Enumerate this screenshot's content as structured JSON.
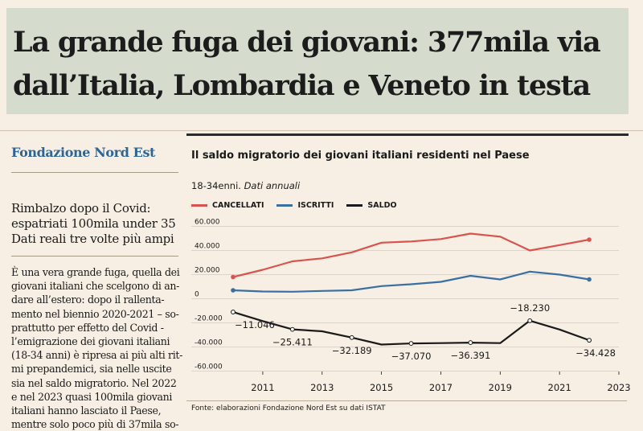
{
  "headline": {
    "line1": "La grande fuga dei giovani: 377mila via",
    "line2": "dall’Italia, Lombardia e Veneto in testa"
  },
  "brand": "Fondazione Nord Est",
  "deck": {
    "line1": "Rimbalzo dopo il Covid:",
    "line2": "espatriati 100mila under 35",
    "line3": "Dati reali tre volte più ampi"
  },
  "body_lines": [
    "È una vera grande fuga, quella dei",
    "giovani italiani che scelgono di an-",
    "dare all’estero: dopo il rallenta-",
    "mento nel biennio 2020-2021 – so-",
    "prattutto per effetto del Covid -",
    "l’emigrazione dei giovani italiani",
    "(18-34 anni) è ripresa ai più alti rit-",
    "mi prepandemici, sia nelle uscite",
    "sia nel saldo migratorio. Nel 2022",
    "e nel 2023 quasi 100mila giovani",
    "italiani hanno lasciato il Paese,",
    "mentre solo poco più di 37mila so-"
  ],
  "chart_header": {
    "title": "Il saldo migratorio dei giovani italiani residenti nel Paese",
    "subtitle_plain": "18-34enni.",
    "subtitle_italic": "Dati annuali",
    "source": "Fonte: elaborazioni Fondazione Nord Est su dati ISTAT"
  },
  "colors": {
    "cancellati": "#d9534f",
    "iscritti": "#3a6fa3",
    "saldo": "#1a1a1a"
  },
  "chart_data": {
    "type": "line",
    "title": "Il saldo migratorio dei giovani italiani residenti nel Paese",
    "subtitle": "18-34enni. Dati annuali",
    "x": [
      2010,
      2011,
      2012,
      2013,
      2014,
      2015,
      2016,
      2017,
      2018,
      2019,
      2020,
      2021,
      2022,
      2023
    ],
    "x_tick_labels": [
      "2011",
      "2013",
      "2015",
      "2017",
      "2019",
      "2021",
      "2023"
    ],
    "x_ticks": [
      2011,
      2013,
      2015,
      2017,
      2019,
      2021,
      2023
    ],
    "y_tick_labels": [
      "60.000",
      "40.000",
      "20.000",
      "0",
      "-20.000",
      "-40.000",
      "-60.000"
    ],
    "y_ticks": [
      60000,
      40000,
      20000,
      0,
      -20000,
      -40000,
      -60000
    ],
    "ylim": [
      -63000,
      65000
    ],
    "series": [
      {
        "name": "CANCELLATI",
        "color_key": "cancellati",
        "values": [
          18000,
          24000,
          31000,
          33500,
          38500,
          46500,
          47500,
          49500,
          54000,
          51500,
          40000,
          44500,
          49000,
          null
        ]
      },
      {
        "name": "ISCRITTI",
        "color_key": "iscritti",
        "values": [
          7000,
          6000,
          5800,
          6500,
          7000,
          10500,
          12000,
          14000,
          19000,
          16000,
          22500,
          20000,
          16000,
          null
        ]
      },
      {
        "name": "SALDO",
        "color_key": "saldo",
        "values": [
          -11046,
          -18500,
          -25411,
          -27000,
          -32189,
          -38000,
          -37070,
          -36800,
          -36391,
          -36800,
          -18230,
          -25500,
          -34428,
          null
        ]
      }
    ],
    "saldo_years": [
      2010,
      2011,
      2012,
      2013,
      2014,
      2015,
      2016,
      2017,
      2018,
      2019,
      2020,
      2021,
      2022
    ],
    "annotations": [
      {
        "year": 2010,
        "value": -11046,
        "label": "−11.046"
      },
      {
        "year": 2012,
        "value": -25411,
        "label": "−25.411"
      },
      {
        "year": 2014,
        "value": -32189,
        "label": "−32.189"
      },
      {
        "year": 2016,
        "value": -37070,
        "label": "−37.070"
      },
      {
        "year": 2018,
        "value": -36391,
        "label": "−36.391"
      },
      {
        "year": 2020,
        "value": -18230,
        "label": "−18.230"
      },
      {
        "year": 2022,
        "value": -34428,
        "label": "−34.428"
      }
    ],
    "legend": [
      "CANCELLATI",
      "ISCRITTI",
      "SALDO"
    ],
    "grid": true
  }
}
